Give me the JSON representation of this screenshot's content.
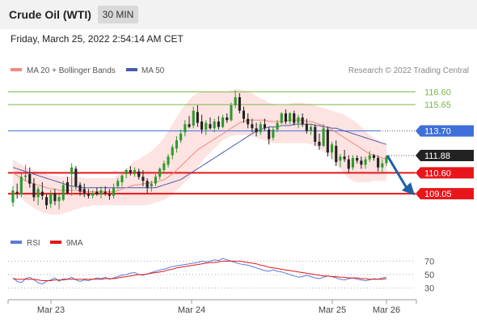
{
  "header": {
    "instrument": "Crude Oil (WTI)",
    "timeframe": "30 MIN",
    "datetime": "Friday, March 25, 2022 2:54:14 AM CET"
  },
  "legend": {
    "ma20_label": "MA 20 + Bollinger Bands",
    "ma50_label": "MA 50",
    "credit": "Research © 2022 Trading Central",
    "rsi_label": "RSI",
    "rsi_ma_label": "9MA"
  },
  "colors": {
    "ma20": "#f08a80",
    "bollinger_fill": "#fde3e1",
    "ma50": "#4a5aa8",
    "resistance_green": "#7ab648",
    "ma_level_blue": "#3f6fd8",
    "support_red": "#e8161a",
    "current_price_tag": "#222222",
    "candle_up": "#2f9a2f",
    "candle_down": "#222222",
    "rsi_line": "#5a7bd8",
    "rsi_ma_line": "#e01818",
    "forecast_arrow": "#1e5fa8"
  },
  "chart_data": [
    {
      "type": "candlestick",
      "title": "Crude Oil (WTI)",
      "timeframe": "30 MIN",
      "x_ticks": [
        "Mar 23",
        "Mar 24",
        "Mar 25",
        "Mar 26"
      ],
      "ylim": [
        106.6,
        117.4
      ],
      "price_levels": [
        {
          "value": 116.6,
          "label": "116.60",
          "kind": "resistance"
        },
        {
          "value": 115.65,
          "label": "115.65",
          "kind": "resistance"
        },
        {
          "value": 113.7,
          "label": "113.70",
          "kind": "ma50"
        },
        {
          "value": 111.88,
          "label": "111.88",
          "kind": "last_price"
        },
        {
          "value": 110.6,
          "label": "110.60",
          "kind": "pivot"
        },
        {
          "value": 109.05,
          "label": "109.05",
          "kind": "support"
        }
      ],
      "ohlc": [
        [
          108.4,
          109.6,
          108.1,
          109.3
        ],
        [
          109.2,
          109.8,
          108.7,
          109.1
        ],
        [
          109.0,
          110.6,
          108.8,
          110.3
        ],
        [
          110.3,
          111.2,
          110.0,
          110.4
        ],
        [
          110.5,
          111.0,
          109.5,
          109.8
        ],
        [
          109.8,
          110.2,
          108.5,
          108.8
        ],
        [
          108.8,
          109.6,
          108.2,
          109.4
        ],
        [
          109.2,
          109.9,
          108.6,
          108.9
        ],
        [
          108.8,
          109.0,
          107.9,
          108.2
        ],
        [
          108.3,
          109.3,
          108.0,
          109.0
        ],
        [
          109.1,
          109.4,
          108.2,
          108.5
        ],
        [
          108.5,
          109.0,
          107.9,
          108.8
        ],
        [
          108.6,
          110.0,
          108.5,
          109.7
        ],
        [
          109.9,
          110.3,
          109.0,
          109.1
        ],
        [
          110.5,
          111.3,
          108.9,
          111.0
        ],
        [
          110.9,
          111.1,
          109.4,
          109.6
        ],
        [
          109.7,
          109.9,
          108.9,
          109.2
        ],
        [
          109.4,
          109.8,
          108.8,
          109.1
        ],
        [
          109.0,
          109.4,
          108.7,
          108.9
        ],
        [
          108.9,
          109.3,
          108.7,
          109.1
        ],
        [
          109.2,
          109.5,
          108.9,
          109.0
        ],
        [
          109.0,
          109.6,
          108.7,
          109.3
        ],
        [
          109.2,
          109.6,
          108.9,
          109.1
        ],
        [
          109.0,
          109.4,
          108.6,
          108.9
        ],
        [
          108.9,
          109.8,
          108.7,
          109.5
        ],
        [
          109.6,
          110.2,
          109.4,
          110.0
        ],
        [
          109.9,
          110.5,
          109.6,
          110.4
        ],
        [
          110.5,
          110.9,
          110.2,
          110.8
        ],
        [
          110.8,
          111.1,
          110.4,
          110.6
        ],
        [
          110.5,
          111.0,
          110.3,
          110.8
        ],
        [
          110.7,
          110.9,
          110.1,
          110.3
        ],
        [
          110.3,
          110.8,
          109.6,
          110.0
        ],
        [
          110.0,
          110.2,
          109.1,
          109.5
        ],
        [
          109.6,
          110.0,
          109.2,
          109.8
        ],
        [
          109.8,
          110.5,
          109.6,
          110.3
        ],
        [
          110.3,
          111.0,
          110.1,
          110.9
        ],
        [
          110.8,
          111.5,
          110.6,
          111.3
        ],
        [
          111.2,
          112.0,
          111.0,
          111.8
        ],
        [
          111.9,
          112.7,
          111.6,
          112.5
        ],
        [
          112.4,
          113.3,
          112.1,
          113.0
        ],
        [
          113.0,
          113.8,
          112.8,
          113.5
        ],
        [
          113.6,
          114.5,
          113.3,
          114.2
        ],
        [
          114.2,
          114.8,
          113.9,
          114.0
        ],
        [
          114.1,
          115.5,
          113.9,
          115.2
        ],
        [
          115.1,
          115.6,
          114.0,
          114.3
        ],
        [
          114.4,
          114.9,
          113.5,
          113.8
        ],
        [
          113.8,
          114.5,
          113.4,
          114.3
        ],
        [
          114.2,
          114.7,
          113.8,
          113.9
        ],
        [
          113.9,
          114.6,
          113.6,
          114.4
        ],
        [
          114.4,
          114.8,
          113.8,
          114.0
        ],
        [
          114.0,
          114.9,
          113.9,
          114.7
        ],
        [
          114.7,
          115.0,
          114.3,
          114.5
        ],
        [
          114.5,
          115.8,
          114.4,
          115.6
        ],
        [
          115.6,
          116.7,
          115.4,
          116.2
        ],
        [
          116.2,
          116.5,
          115.0,
          115.2
        ],
        [
          115.2,
          115.5,
          114.3,
          114.6
        ],
        [
          114.6,
          115.0,
          113.9,
          114.2
        ],
        [
          114.2,
          114.6,
          113.6,
          113.9
        ],
        [
          113.9,
          114.3,
          113.3,
          113.6
        ],
        [
          113.6,
          114.4,
          113.4,
          114.2
        ],
        [
          114.2,
          114.6,
          113.7,
          113.9
        ],
        [
          113.8,
          114.0,
          112.7,
          113.1
        ],
        [
          113.2,
          114.0,
          113.0,
          113.8
        ],
        [
          113.8,
          114.5,
          113.6,
          114.3
        ],
        [
          114.3,
          115.1,
          114.2,
          115.0
        ],
        [
          115.0,
          115.3,
          114.2,
          114.4
        ],
        [
          114.4,
          115.1,
          114.2,
          115.0
        ],
        [
          115.0,
          115.2,
          114.1,
          114.3
        ],
        [
          114.3,
          114.9,
          113.9,
          114.7
        ],
        [
          114.7,
          115.0,
          114.0,
          114.2
        ],
        [
          114.2,
          114.6,
          113.5,
          113.7
        ],
        [
          113.7,
          114.2,
          113.4,
          114.0
        ],
        [
          114.0,
          114.2,
          112.6,
          112.9
        ],
        [
          112.9,
          113.5,
          112.3,
          112.6
        ],
        [
          112.6,
          114.2,
          112.5,
          113.9
        ],
        [
          113.8,
          114.0,
          111.8,
          112.1
        ],
        [
          112.1,
          112.9,
          111.6,
          112.7
        ],
        [
          112.6,
          113.0,
          111.1,
          111.4
        ],
        [
          111.5,
          112.0,
          111.0,
          111.8
        ],
        [
          111.8,
          112.3,
          111.4,
          111.6
        ],
        [
          111.6,
          111.9,
          110.6,
          110.9
        ],
        [
          111.0,
          111.9,
          110.8,
          111.7
        ],
        [
          111.7,
          111.9,
          111.3,
          111.5
        ],
        [
          111.5,
          111.8,
          110.9,
          111.2
        ],
        [
          111.2,
          111.8,
          110.9,
          111.6
        ],
        [
          111.6,
          112.2,
          111.4,
          111.9
        ],
        [
          111.9,
          112.0,
          111.5,
          111.7
        ],
        [
          111.7,
          111.9,
          110.7,
          111.0
        ],
        [
          111.0,
          111.6,
          110.6,
          111.3
        ],
        [
          111.3,
          111.9,
          111.1,
          111.8
        ]
      ],
      "ma20": [
        110.6,
        110.4,
        110.2,
        110.0,
        109.9,
        109.8,
        109.7,
        109.6,
        109.5,
        109.4,
        109.4,
        109.3,
        109.3,
        109.3,
        109.3,
        109.3,
        109.3,
        109.2,
        109.2,
        109.2,
        109.2,
        109.2,
        109.2,
        109.2,
        109.2,
        109.3,
        109.4,
        109.5,
        109.6,
        109.7,
        109.7,
        109.8,
        109.8,
        109.9,
        109.9,
        110.0,
        110.1,
        110.3,
        110.5,
        110.8,
        111.1,
        111.4,
        111.7,
        112.0,
        112.3,
        112.5,
        112.7,
        112.9,
        113.1,
        113.3,
        113.5,
        113.7,
        113.9,
        114.1,
        114.3,
        114.4,
        114.5,
        114.5,
        114.5,
        114.5,
        114.5,
        114.4,
        114.4,
        114.4,
        114.4,
        114.4,
        114.5,
        114.5,
        114.5,
        114.5,
        114.4,
        114.4,
        114.3,
        114.2,
        114.1,
        113.9,
        113.8,
        113.6,
        113.4,
        113.2,
        113.0,
        112.8,
        112.6,
        112.4,
        112.2,
        112.0,
        111.9,
        111.8,
        111.7,
        111.6
      ],
      "bollinger_upper": [
        111.6,
        111.4,
        111.2,
        111.0,
        110.9,
        110.8,
        110.7,
        110.6,
        110.5,
        110.4,
        110.4,
        110.3,
        110.3,
        110.3,
        110.3,
        110.3,
        110.3,
        110.2,
        110.2,
        110.2,
        110.2,
        110.2,
        110.2,
        110.2,
        110.2,
        110.4,
        110.6,
        110.9,
        111.2,
        111.5,
        111.6,
        111.8,
        112.0,
        112.2,
        112.5,
        112.8,
        113.2,
        113.7,
        114.2,
        114.7,
        115.2,
        115.6,
        116.0,
        116.3,
        116.5,
        116.6,
        116.6,
        116.6,
        116.6,
        116.6,
        116.6,
        116.6,
        116.7,
        116.8,
        116.8,
        116.7,
        116.6,
        116.5,
        116.3,
        116.1,
        116.0,
        115.8,
        115.7,
        115.6,
        115.6,
        115.6,
        115.7,
        115.8,
        115.8,
        115.8,
        115.7,
        115.7,
        115.6,
        115.5,
        115.4,
        115.3,
        115.2,
        115.1,
        115.0,
        114.9,
        114.7,
        114.5,
        114.3,
        114.0,
        113.7,
        113.4,
        113.2,
        113.0,
        112.8,
        112.6
      ],
      "bollinger_lower": [
        109.6,
        109.1,
        108.7,
        108.4,
        108.2,
        108.0,
        107.8,
        107.7,
        107.6,
        107.5,
        107.5,
        107.5,
        107.6,
        107.7,
        107.8,
        107.9,
        108.0,
        108.1,
        108.1,
        108.2,
        108.2,
        108.2,
        108.2,
        108.2,
        108.2,
        108.2,
        108.2,
        108.2,
        108.2,
        108.2,
        108.2,
        108.2,
        108.2,
        108.3,
        108.4,
        108.5,
        108.6,
        108.8,
        109.0,
        109.3,
        109.6,
        109.9,
        110.2,
        110.6,
        111.0,
        111.4,
        111.8,
        112.1,
        112.4,
        112.7,
        113.0,
        113.2,
        113.3,
        113.4,
        113.4,
        113.4,
        113.4,
        113.3,
        113.2,
        113.1,
        113.0,
        112.9,
        112.8,
        112.8,
        112.8,
        112.8,
        112.8,
        112.8,
        112.8,
        112.8,
        112.8,
        112.7,
        112.6,
        112.4,
        112.2,
        112.0,
        111.7,
        111.3,
        110.9,
        110.5,
        110.2,
        110.0,
        109.9,
        109.9,
        109.9,
        109.9,
        110.0,
        110.0,
        110.0,
        110.0
      ],
      "ma50": [
        111.0,
        110.9,
        110.8,
        110.7,
        110.6,
        110.5,
        110.4,
        110.3,
        110.2,
        110.1,
        110.0,
        109.9,
        109.8,
        109.7,
        109.6,
        109.6,
        109.5,
        109.5,
        109.5,
        109.5,
        109.5,
        109.5,
        109.5,
        109.5,
        109.5,
        109.5,
        109.5,
        109.5,
        109.5,
        109.5,
        109.5,
        109.5,
        109.5,
        109.5,
        109.5,
        109.6,
        109.7,
        109.8,
        109.9,
        110.0,
        110.1,
        110.3,
        110.5,
        110.7,
        110.9,
        111.1,
        111.3,
        111.5,
        111.7,
        111.9,
        112.1,
        112.3,
        112.5,
        112.7,
        112.9,
        113.1,
        113.3,
        113.5,
        113.7,
        113.8,
        113.9,
        114.0,
        114.0,
        114.0,
        114.1,
        114.1,
        114.1,
        114.2,
        114.2,
        114.2,
        114.2,
        114.2,
        114.1,
        114.1,
        114.0,
        114.0,
        113.9,
        113.9,
        113.8,
        113.7,
        113.6,
        113.5,
        113.4,
        113.3,
        113.2,
        113.1,
        113.0,
        112.9,
        112.8,
        112.7
      ]
    },
    {
      "type": "line",
      "title": "",
      "series_labels": [
        "RSI",
        "9MA"
      ],
      "yticks": [
        70,
        50,
        30
      ],
      "ylim": [
        15,
        85
      ],
      "rsi": [
        45,
        40,
        38,
        44,
        46,
        42,
        38,
        36,
        40,
        42,
        45,
        40,
        44,
        43,
        46,
        42,
        40,
        42,
        41,
        43,
        45,
        44,
        46,
        43,
        45,
        47,
        49,
        50,
        52,
        53,
        50,
        49,
        51,
        53,
        55,
        57,
        58,
        60,
        62,
        63,
        64,
        65,
        66,
        67,
        68,
        70,
        69,
        70,
        72,
        71,
        74,
        72,
        70,
        68,
        66,
        65,
        64,
        62,
        60,
        58,
        56,
        55,
        57,
        55,
        54,
        52,
        50,
        48,
        46,
        47,
        49,
        47,
        45,
        44,
        46,
        48,
        47,
        45,
        43,
        42,
        44,
        45,
        43,
        42,
        41,
        42,
        44,
        43,
        45,
        46
      ],
      "rsi_ma": [
        44,
        43,
        43,
        43,
        43,
        43,
        42,
        41,
        41,
        41,
        42,
        42,
        42,
        43,
        43,
        43,
        43,
        43,
        43,
        43,
        43,
        43,
        44,
        44,
        44,
        45,
        46,
        47,
        48,
        49,
        50,
        50,
        51,
        52,
        53,
        54,
        55,
        57,
        58,
        60,
        61,
        62,
        63,
        64,
        65,
        66,
        67,
        68,
        68,
        69,
        70,
        70,
        70,
        70,
        70,
        69,
        68,
        67,
        66,
        64,
        63,
        61,
        60,
        59,
        58,
        57,
        56,
        55,
        54,
        53,
        52,
        51,
        50,
        49,
        48,
        48,
        47,
        47,
        46,
        46,
        45,
        45,
        45,
        44,
        44,
        43,
        43,
        43,
        43,
        44
      ]
    }
  ],
  "annotations": {
    "forecast_arrow": {
      "from": 111.88,
      "to": 109.05,
      "direction": "down"
    }
  }
}
